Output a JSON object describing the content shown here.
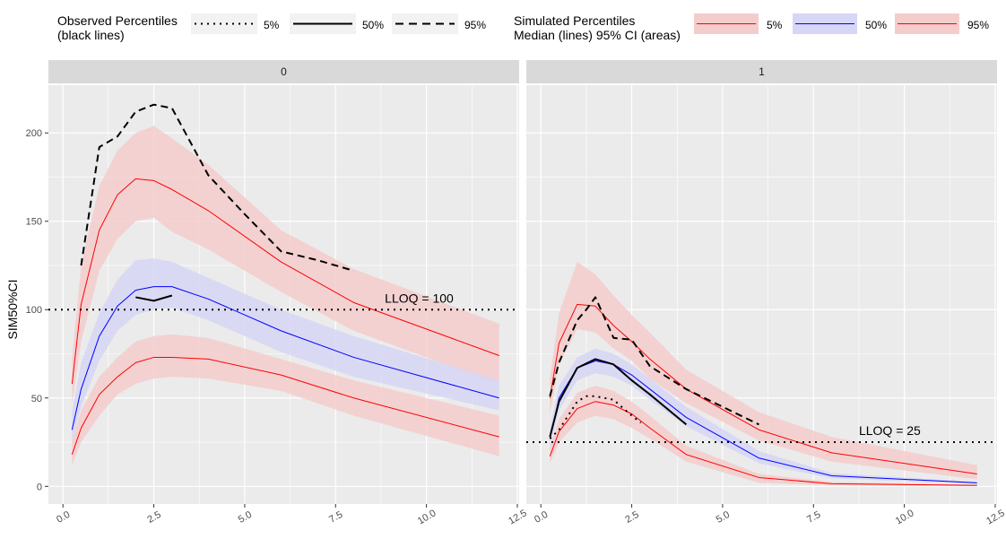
{
  "chart_data": {
    "type": "line",
    "ylabel": "SIM50%CI",
    "xlabel": "",
    "xlim": [
      -0.4,
      12.55
    ],
    "ylim": [
      -10,
      227
    ],
    "x_ticks": [
      0.0,
      2.5,
      5.0,
      7.5,
      10.0,
      12.5
    ],
    "x_tick_labels": [
      "0.0",
      "2.5",
      "5.0",
      "7.5",
      "10.0",
      "12.5"
    ],
    "y_ticks": [
      0,
      50,
      100,
      150,
      200
    ],
    "y_tick_labels": [
      "0",
      "50",
      "100",
      "150",
      "200"
    ],
    "legend": {
      "observed": {
        "title_line1": "Observed Percentiles",
        "title_line2": "(black lines)",
        "entries": [
          {
            "label": "5%",
            "linetype": "dotted"
          },
          {
            "label": "50%",
            "linetype": "solid"
          },
          {
            "label": "95%",
            "linetype": "dashed"
          }
        ]
      },
      "simulated": {
        "title_line1": "Simulated Percentiles",
        "title_line2": "Median (lines) 95% CI (areas)",
        "entries": [
          {
            "label": "5%",
            "color": "#ff0000",
            "fill": "#f4cccc"
          },
          {
            "label": "50%",
            "color": "#0000ff",
            "fill": "#d6d6f6"
          },
          {
            "label": "95%",
            "color": "#ff0000",
            "fill": "#f4cccc"
          }
        ]
      }
    },
    "colors": {
      "panel_bg": "#ebebeb",
      "grid": "#ffffff",
      "strip_bg": "#d9d9d9",
      "red": "#ff0000",
      "blue": "#0000ff",
      "red_band": "#f4cccc",
      "blue_band": "#d6d6f6",
      "black": "#000000"
    },
    "panels": [
      {
        "label": "0",
        "lloq": 100,
        "lloq_label": "LLOQ = 100",
        "lloq_label_x": 9.8,
        "lloq_label_y": 104,
        "sim_x": [
          0.25,
          0.5,
          1,
          1.5,
          2,
          2.5,
          3,
          4,
          6,
          8,
          12
        ],
        "sim_p5": {
          "median": [
            18,
            33,
            52,
            62,
            70,
            73,
            73,
            72,
            63,
            50,
            28
          ],
          "lo": [
            12,
            25,
            40,
            52,
            58,
            61,
            62,
            61,
            54,
            40,
            17
          ],
          "hi": [
            25,
            43,
            62,
            73,
            82,
            85,
            86,
            84,
            72,
            60,
            40
          ]
        },
        "sim_p50": {
          "median": [
            32,
            55,
            85,
            102,
            111,
            113,
            113,
            106,
            88,
            73,
            50
          ],
          "lo": [
            25,
            45,
            71,
            88,
            97,
            100,
            101,
            94,
            76,
            62,
            43
          ],
          "hi": [
            42,
            70,
            98,
            117,
            128,
            129,
            127,
            118,
            100,
            85,
            60
          ]
        },
        "sim_p95": {
          "median": [
            58,
            103,
            145,
            165,
            174,
            173,
            168,
            156,
            127,
            104,
            74
          ],
          "lo": [
            46,
            82,
            122,
            140,
            150,
            152,
            144,
            134,
            110,
            88,
            58
          ],
          "hi": [
            72,
            125,
            170,
            190,
            200,
            204,
            197,
            182,
            145,
            123,
            92
          ]
        },
        "obs_p50": {
          "x": [
            2,
            2.5,
            3
          ],
          "y": [
            107,
            105,
            108
          ]
        },
        "obs_p95": {
          "x": [
            0.5,
            1,
            1.5,
            2,
            2.5,
            3,
            4,
            5,
            6,
            7,
            8
          ],
          "y": [
            125,
            192,
            198,
            212,
            216,
            214,
            176,
            154,
            133,
            128,
            122
          ]
        },
        "obs_p5": {
          "x": [],
          "y": []
        }
      },
      {
        "label": "1",
        "lloq": 25,
        "lloq_label": "LLOQ = 25",
        "lloq_label_x": 9.6,
        "lloq_label_y": 29,
        "sim_x": [
          0.25,
          0.5,
          1,
          1.5,
          2,
          2.5,
          3,
          4,
          6,
          8,
          12
        ],
        "sim_p5": {
          "median": [
            17,
            31,
            44,
            48,
            46,
            41,
            33,
            18,
            5,
            1.5,
            0.5
          ],
          "lo": [
            13,
            25,
            36,
            40,
            38,
            33,
            27,
            14,
            2,
            0.5,
            0.2
          ],
          "hi": [
            22,
            38,
            53,
            57,
            54,
            48,
            40,
            23,
            7,
            2.5,
            1
          ]
        },
        "sim_p50": {
          "median": [
            27,
            50,
            67,
            71,
            69,
            63,
            55,
            39,
            16,
            6,
            2
          ],
          "lo": [
            22,
            43,
            60,
            64,
            62,
            57,
            49,
            34,
            13,
            4.5,
            1.3
          ],
          "hi": [
            33,
            57,
            73,
            78,
            75,
            69,
            61,
            45,
            20,
            7.5,
            2.5
          ]
        },
        "sim_p95": {
          "median": [
            50,
            81,
            103,
            102,
            91,
            82,
            72,
            55,
            32,
            19,
            7
          ],
          "lo": [
            41,
            69,
            89,
            87,
            78,
            71,
            61,
            47,
            26,
            14,
            4
          ],
          "hi": [
            61,
            98,
            127,
            120,
            108,
            97,
            87,
            66,
            42,
            28,
            12
          ]
        },
        "obs_p5": {
          "x": [
            0.25,
            0.5,
            1,
            1.25,
            1.5,
            2,
            2.5,
            2.75
          ],
          "y": [
            27,
            32,
            48,
            51,
            51,
            49,
            40,
            36
          ]
        },
        "obs_p50": {
          "x": [
            0.25,
            0.5,
            1,
            1.5,
            2,
            2.5,
            3,
            4
          ],
          "y": [
            28,
            48,
            67,
            72,
            69,
            60,
            52,
            35
          ]
        },
        "obs_p95": {
          "x": [
            0.25,
            0.5,
            1,
            1.25,
            1.5,
            2,
            2.5,
            3,
            4,
            5,
            6
          ],
          "y": [
            51,
            70,
            94,
            100,
            107,
            84,
            83,
            68,
            55,
            45,
            35
          ]
        }
      }
    ]
  }
}
